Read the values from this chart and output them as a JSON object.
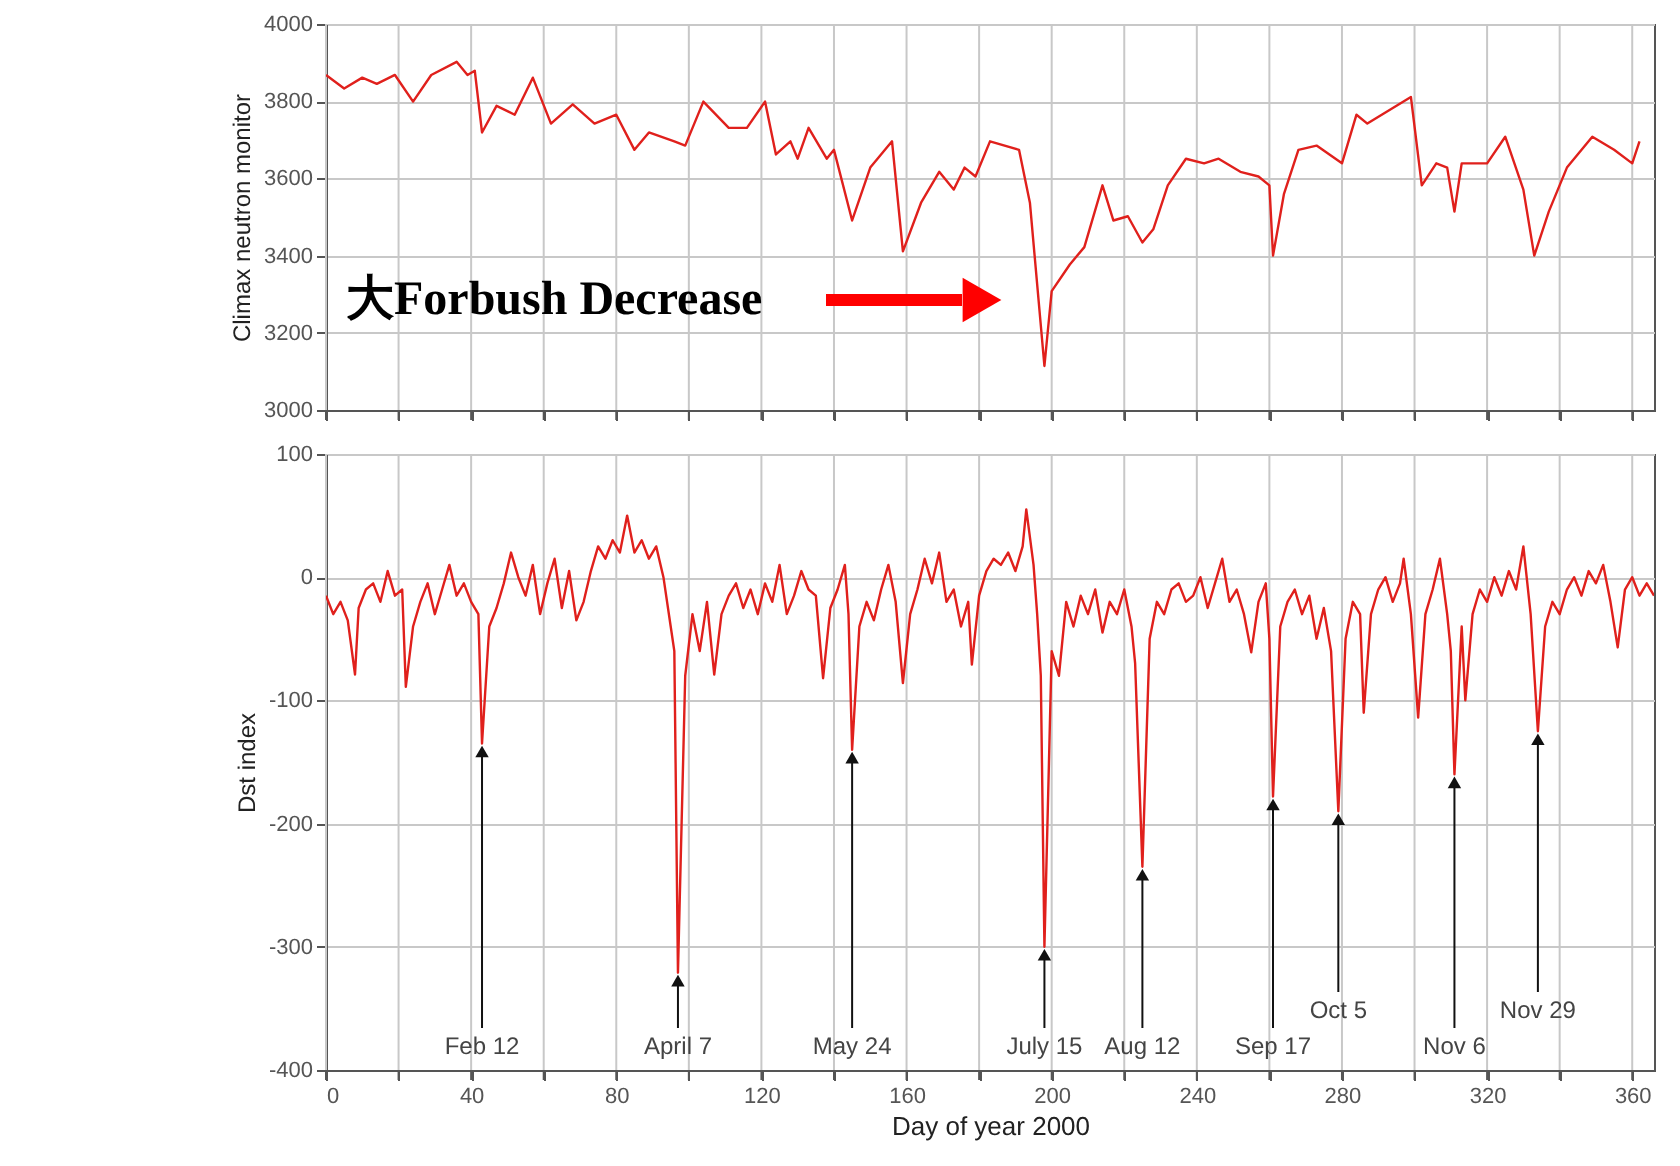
{
  "chart_data": [
    {
      "type": "line",
      "ylabel": "Climax neutron monitor",
      "annotations": [
        "大Forbush Decrease"
      ],
      "xlim": [
        0,
        366
      ],
      "xticks": [
        0,
        {
          "value": 20,
          "label": null
        },
        40,
        {
          "value": 60,
          "label": null
        },
        80,
        {
          "value": 100,
          "label": null
        },
        120,
        {
          "value": 140,
          "label": null
        },
        160,
        {
          "value": 180,
          "label": null
        },
        200,
        {
          "value": 220,
          "label": null
        },
        240,
        {
          "value": 260,
          "label": null
        },
        280,
        {
          "value": 300,
          "label": null
        },
        320,
        {
          "value": 340,
          "label": null
        },
        360
      ],
      "ylim": [
        3000,
        4000
      ],
      "yticks": [
        3000,
        3200,
        3400,
        3600,
        3800,
        4000
      ],
      "grid": true,
      "tick_labels": "y",
      "series": [
        {
          "color": "#e0201c",
          "x": [
            0,
            5,
            10,
            14,
            19,
            24,
            29,
            36,
            39,
            41,
            43,
            47,
            52,
            57,
            62,
            68,
            74,
            80,
            85,
            89,
            96,
            99,
            104,
            111,
            116,
            121,
            124,
            128,
            130,
            133,
            138,
            140,
            145,
            150,
            156,
            159,
            164,
            169,
            173,
            176,
            179,
            183,
            191,
            194,
            198,
            200,
            205,
            209,
            214,
            217,
            221,
            225,
            228,
            232,
            237,
            242,
            246,
            252,
            257,
            260,
            261,
            264,
            268,
            273,
            280,
            284,
            287,
            299,
            302,
            306,
            309,
            311,
            313,
            320,
            325,
            330,
            333,
            337,
            342,
            349,
            355,
            360,
            362
          ],
          "values": [
            3868,
            3833,
            3861,
            3845,
            3868,
            3799,
            3868,
            3902,
            3868,
            3879,
            3719,
            3788,
            3765,
            3861,
            3742,
            3792,
            3742,
            3765,
            3674,
            3719,
            3696,
            3685,
            3799,
            3731,
            3731,
            3799,
            3662,
            3696,
            3651,
            3731,
            3651,
            3674,
            3491,
            3628,
            3696,
            3411,
            3537,
            3617,
            3571,
            3628,
            3605,
            3696,
            3674,
            3537,
            3114,
            3308,
            3377,
            3422,
            3582,
            3491,
            3502,
            3434,
            3468,
            3582,
            3651,
            3639,
            3651,
            3617,
            3605,
            3582,
            3400,
            3559,
            3674,
            3685,
            3639,
            3765,
            3742,
            3811,
            3582,
            3639,
            3628,
            3514,
            3639,
            3639,
            3708,
            3571,
            3400,
            3514,
            3628,
            3708,
            3674,
            3639,
            3696
          ]
        }
      ]
    },
    {
      "type": "line",
      "xlabel": "Day of year 2000",
      "ylabel": "Dst index",
      "annotations": [
        {
          "text": "Feb 12",
          "x": 43,
          "y": -135
        },
        {
          "text": "April 7",
          "x": 97,
          "y": -321
        },
        {
          "text": "May 24",
          "x": 145,
          "y": -140
        },
        {
          "text": "July 15",
          "x": 198,
          "y": -300
        },
        {
          "text": "Aug 12",
          "x": 225,
          "y": -235
        },
        {
          "text": "Sep 17",
          "x": 261,
          "y": -178
        },
        {
          "text": "Oct 5",
          "x": 279,
          "y": -190
        },
        {
          "text": "Nov 6",
          "x": 311,
          "y": -160
        },
        {
          "text": "Nov 29",
          "x": 334,
          "y": -125
        }
      ],
      "xlim": [
        0,
        366
      ],
      "xticks": [
        0,
        {
          "value": 20,
          "label": null
        },
        40,
        {
          "value": 60,
          "label": null
        },
        80,
        {
          "value": 100,
          "label": null
        },
        120,
        {
          "value": 140,
          "label": null
        },
        160,
        {
          "value": 180,
          "label": null
        },
        200,
        {
          "value": 220,
          "label": null
        },
        240,
        {
          "value": 260,
          "label": null
        },
        280,
        {
          "value": 300,
          "label": null
        },
        320,
        {
          "value": 340,
          "label": null
        },
        360
      ],
      "ylim": [
        -400,
        100
      ],
      "yticks": [
        -400,
        -300,
        -200,
        -100,
        0,
        100
      ],
      "grid": true,
      "series": [
        {
          "color": "#e0201c",
          "x": [
            0,
            2,
            4,
            6,
            8,
            9,
            11,
            13,
            15,
            17,
            19,
            21,
            22,
            24,
            26,
            28,
            30,
            32,
            34,
            36,
            38,
            40,
            42,
            43,
            45,
            47,
            49,
            51,
            53,
            55,
            57,
            59,
            61,
            63,
            65,
            67,
            69,
            71,
            73,
            75,
            77,
            79,
            81,
            83,
            85,
            87,
            89,
            91,
            93,
            95,
            96,
            97,
            99,
            101,
            103,
            105,
            107,
            109,
            111,
            113,
            115,
            117,
            119,
            121,
            123,
            125,
            127,
            129,
            131,
            133,
            135,
            137,
            139,
            141,
            143,
            144,
            145,
            147,
            149,
            151,
            153,
            155,
            157,
            159,
            161,
            163,
            165,
            167,
            169,
            171,
            173,
            175,
            177,
            178,
            180,
            182,
            184,
            186,
            188,
            190,
            192,
            193,
            195,
            196,
            197,
            198,
            200,
            202,
            204,
            206,
            208,
            210,
            212,
            214,
            216,
            218,
            220,
            222,
            223,
            225,
            227,
            229,
            231,
            233,
            235,
            237,
            239,
            241,
            243,
            245,
            247,
            249,
            251,
            253,
            255,
            257,
            259,
            260,
            261,
            263,
            265,
            267,
            269,
            271,
            273,
            275,
            277,
            279,
            281,
            283,
            285,
            286,
            288,
            290,
            292,
            294,
            296,
            297,
            299,
            301,
            303,
            305,
            307,
            309,
            310,
            311,
            313,
            314,
            316,
            318,
            320,
            322,
            324,
            326,
            328,
            330,
            332,
            334,
            336,
            338,
            340,
            342,
            344,
            346,
            348,
            350,
            352,
            354,
            356,
            358,
            360,
            362,
            364,
            366
          ],
          "values": [
            -15,
            -30,
            -20,
            -35,
            -79,
            -25,
            -10,
            -5,
            -20,
            5,
            -15,
            -10,
            -89,
            -40,
            -20,
            -5,
            -30,
            -10,
            10,
            -15,
            -5,
            -20,
            -30,
            -135,
            -40,
            -25,
            -5,
            20,
            0,
            -15,
            10,
            -30,
            -5,
            15,
            -25,
            5,
            -35,
            -20,
            5,
            25,
            15,
            30,
            20,
            50,
            20,
            30,
            15,
            25,
            0,
            -40,
            -60,
            -321,
            -80,
            -30,
            -60,
            -20,
            -79,
            -30,
            -15,
            -5,
            -25,
            -10,
            -30,
            -5,
            -20,
            10,
            -30,
            -15,
            5,
            -10,
            -15,
            -82,
            -25,
            -10,
            10,
            -30,
            -140,
            -40,
            -20,
            -35,
            -10,
            10,
            -20,
            -86,
            -30,
            -10,
            15,
            -5,
            20,
            -20,
            -10,
            -40,
            -20,
            -71,
            -15,
            5,
            15,
            10,
            20,
            5,
            25,
            55,
            10,
            -30,
            -80,
            -300,
            -60,
            -80,
            -20,
            -40,
            -15,
            -30,
            -10,
            -45,
            -20,
            -30,
            -10,
            -40,
            -70,
            -235,
            -50,
            -20,
            -30,
            -10,
            -5,
            -20,
            -15,
            0,
            -25,
            -5,
            15,
            -20,
            -10,
            -30,
            -61,
            -20,
            -5,
            -50,
            -178,
            -40,
            -20,
            -10,
            -30,
            -15,
            -50,
            -25,
            -60,
            -190,
            -50,
            -20,
            -30,
            -110,
            -30,
            -10,
            0,
            -20,
            -5,
            15,
            -30,
            -114,
            -30,
            -10,
            15,
            -30,
            -60,
            -160,
            -40,
            -100,
            -30,
            -10,
            -20,
            0,
            -15,
            5,
            -10,
            25,
            -30,
            -125,
            -40,
            -20,
            -30,
            -10,
            0,
            -15,
            5,
            -5,
            10,
            -20,
            -57,
            -10,
            0,
            -15,
            -5,
            -15
          ]
        }
      ]
    }
  ]
}
